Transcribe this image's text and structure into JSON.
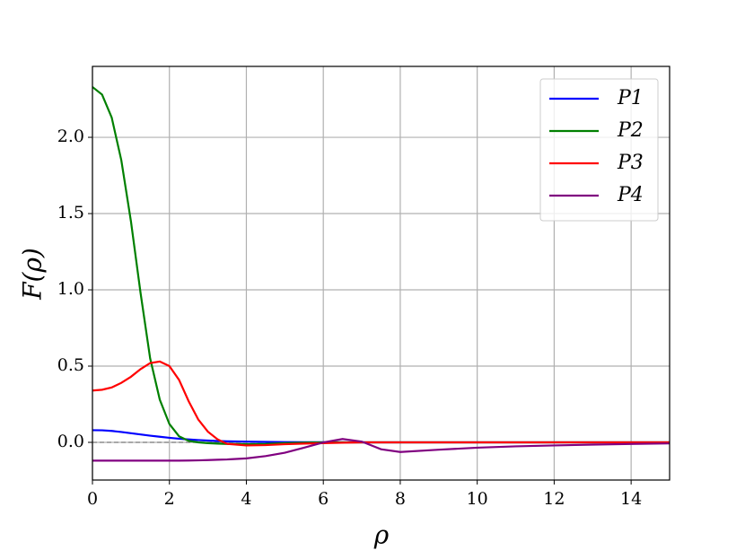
{
  "chart_data": {
    "type": "line",
    "xlabel": "ρ",
    "ylabel": "F(ρ)",
    "x": [
      0,
      0.25,
      0.5,
      0.75,
      1,
      1.25,
      1.5,
      1.75,
      2,
      2.25,
      2.5,
      2.75,
      3,
      3.25,
      3.5,
      4,
      4.5,
      5,
      5.5,
      6,
      6.5,
      7,
      7.5,
      8,
      9,
      10,
      11,
      12,
      13,
      14,
      15
    ],
    "series": [
      {
        "name": "P1",
        "color": "#0000ff",
        "values": [
          0.08,
          0.079,
          0.075,
          0.068,
          0.06,
          0.052,
          0.044,
          0.037,
          0.03,
          0.024,
          0.019,
          0.015,
          0.012,
          0.009,
          0.007,
          0.005,
          0.003,
          0.002,
          0.001,
          0.001,
          0,
          0,
          0,
          0,
          0,
          0,
          0,
          0,
          0,
          0,
          0
        ]
      },
      {
        "name": "P2",
        "color": "#008000",
        "values": [
          2.33,
          2.28,
          2.13,
          1.85,
          1.45,
          0.98,
          0.55,
          0.28,
          0.12,
          0.04,
          0.01,
          0,
          -0.005,
          -0.008,
          -0.01,
          -0.012,
          -0.01,
          -0.005,
          -0.002,
          0,
          0,
          0,
          0,
          0,
          0,
          0,
          0,
          0,
          0,
          0,
          0
        ]
      },
      {
        "name": "P3",
        "color": "#ff0000",
        "values": [
          0.34,
          0.345,
          0.36,
          0.39,
          0.43,
          0.48,
          0.52,
          0.53,
          0.5,
          0.41,
          0.27,
          0.15,
          0.07,
          0.02,
          -0.01,
          -0.02,
          -0.018,
          -0.012,
          -0.008,
          -0.005,
          -0.002,
          0,
          0,
          0,
          0,
          0,
          0,
          0,
          0,
          0,
          0
        ]
      },
      {
        "name": "P4",
        "color": "#800080",
        "values": [
          -0.12,
          -0.12,
          -0.12,
          -0.12,
          -0.12,
          -0.12,
          -0.12,
          -0.12,
          -0.12,
          -0.12,
          -0.119,
          -0.118,
          -0.116,
          -0.114,
          -0.112,
          -0.105,
          -0.09,
          -0.068,
          -0.035,
          0,
          0.022,
          0.005,
          -0.045,
          -0.063,
          -0.048,
          -0.035,
          -0.026,
          -0.02,
          -0.015,
          -0.01,
          -0.007
        ]
      }
    ],
    "hline": 0,
    "xlim": [
      0,
      15
    ],
    "xticks": [
      0,
      2,
      4,
      6,
      8,
      10,
      12,
      14
    ],
    "ylim": [
      -0.247,
      2.465
    ],
    "yticks": [
      {
        "value": 0,
        "label": "0.0"
      },
      0.5,
      {
        "value": 1,
        "label": "1.0"
      },
      1.5,
      {
        "value": 2,
        "label": "2.0"
      }
    ],
    "grid": true,
    "legend": "upper right"
  }
}
